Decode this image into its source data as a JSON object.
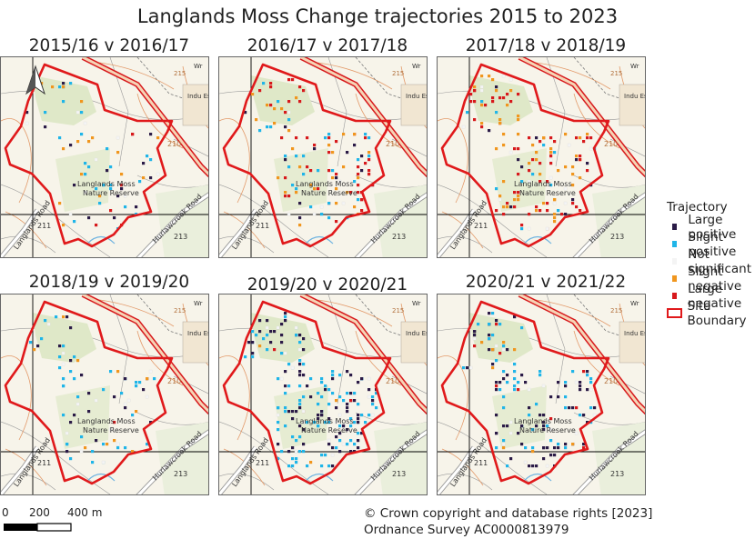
{
  "title": "Langlands Moss Change trajectories 2015 to 2023",
  "panels": [
    {
      "title": "2015/16 v 2016/17"
    },
    {
      "title": "2016/17 v 2017/18"
    },
    {
      "title": "2017/18 v 2018/19"
    },
    {
      "title": "2018/19 v 2019/20"
    },
    {
      "title": "2019/20 v 2020/21"
    },
    {
      "title": "2020/21 v 2021/22"
    }
  ],
  "map_labels": {
    "reserve_line1": "Langlands Moss",
    "reserve_line2": "Nature Reserve",
    "road_west": "Langlands Road",
    "road_east": "Hurlawcrook Road",
    "spot1": "211",
    "spot2": "213",
    "spot3": "210",
    "contour": "215",
    "estate": "Indu Est",
    "wr": "Wr"
  },
  "legend": {
    "title": "Trajectory",
    "items": [
      {
        "label": "Large positive",
        "color": "#2b1b47"
      },
      {
        "label": "Slight positive",
        "color": "#1fb5e8"
      },
      {
        "label": "Not significant",
        "color": "#f4f4f4"
      },
      {
        "label": "Slight negative",
        "color": "#f0961e"
      },
      {
        "label": "Large negative",
        "color": "#d7191c"
      }
    ],
    "boundary_label": "Site Boundary",
    "boundary_color": "#e0191b"
  },
  "scalebar": {
    "ticks": [
      "0",
      "200",
      "400 m"
    ]
  },
  "copyright": {
    "line1": "© Crown copyright and database rights [2023]",
    "line2": "Ordnance Survey AC0000813979"
  }
}
